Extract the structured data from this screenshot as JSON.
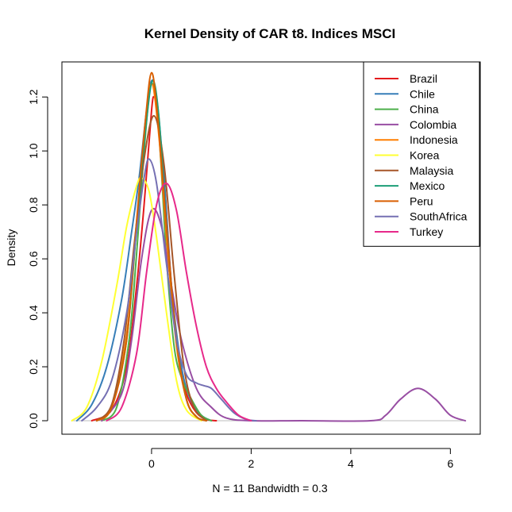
{
  "chart_data": {
    "type": "line",
    "title": "Kernel Density of CAR t8. Indices MSCI",
    "xlabel": "N = 11   Bandwidth = 0.3",
    "ylabel": "Density",
    "xlim": [
      -1.8,
      6.6
    ],
    "ylim": [
      -0.05,
      1.33
    ],
    "x_ticks": [
      0,
      2,
      4,
      6
    ],
    "x_tick_labels": [
      "0",
      "2",
      "4",
      "6"
    ],
    "y_ticks": [
      0.0,
      0.2,
      0.4,
      0.6,
      0.8,
      1.0,
      1.2
    ],
    "y_tick_labels": [
      "0.0",
      "0.2",
      "0.4",
      "0.6",
      "0.8",
      "1.0",
      "1.2"
    ],
    "baseline_color": "#bebebe",
    "legend_position": "top-right",
    "series": [
      {
        "name": "Brazil",
        "color": "#e41a1c",
        "peak_x": 0.05,
        "peak_density": 1.2,
        "x": [
          -1.2,
          -0.8,
          -0.5,
          -0.3,
          -0.15,
          0.0,
          0.05,
          0.1,
          0.25,
          0.4,
          0.55,
          0.7,
          0.9,
          1.1,
          1.3
        ],
        "density": [
          0.0,
          0.04,
          0.2,
          0.5,
          0.8,
          1.15,
          1.2,
          1.17,
          0.9,
          0.5,
          0.22,
          0.1,
          0.03,
          0.005,
          0.0
        ]
      },
      {
        "name": "Chile",
        "color": "#377eb8",
        "peak_x": 0.0,
        "peak_density": 1.26,
        "x": [
          -1.5,
          -1.2,
          -0.9,
          -0.6,
          -0.4,
          -0.25,
          -0.1,
          0.0,
          0.1,
          0.25,
          0.4,
          0.6,
          0.8,
          1.0,
          1.2
        ],
        "density": [
          0.0,
          0.06,
          0.2,
          0.45,
          0.7,
          0.9,
          1.15,
          1.26,
          1.2,
          0.9,
          0.5,
          0.2,
          0.07,
          0.02,
          0.0
        ]
      },
      {
        "name": "China",
        "color": "#4daf4a",
        "peak_x": -0.02,
        "peak_density": 1.24,
        "x": [
          -1.0,
          -0.7,
          -0.45,
          -0.3,
          -0.15,
          -0.02,
          0.1,
          0.2,
          0.3,
          0.45,
          0.6,
          0.8,
          1.0,
          1.2
        ],
        "density": [
          0.0,
          0.05,
          0.3,
          0.62,
          1.0,
          1.24,
          1.18,
          0.92,
          0.6,
          0.28,
          0.16,
          0.08,
          0.02,
          0.0
        ]
      },
      {
        "name": "Colombia",
        "color": "#984ea3",
        "peak_x": 5.35,
        "peak_density": 0.12,
        "x": [
          -1.0,
          -0.6,
          -0.4,
          -0.2,
          0.0,
          0.2,
          0.4,
          0.6,
          0.9,
          1.2,
          1.5,
          2.0,
          3.0,
          4.4,
          4.7,
          5.0,
          5.35,
          5.7,
          6.0,
          6.3
        ],
        "density": [
          0.0,
          0.1,
          0.3,
          0.6,
          0.78,
          0.72,
          0.5,
          0.3,
          0.12,
          0.05,
          0.01,
          0.0,
          0.0,
          0.0,
          0.02,
          0.08,
          0.12,
          0.08,
          0.02,
          0.0
        ]
      },
      {
        "name": "Indonesia",
        "color": "#ff7f00",
        "peak_x": 0.0,
        "peak_density": 1.25,
        "x": [
          -1.1,
          -0.8,
          -0.5,
          -0.3,
          -0.15,
          0.0,
          0.15,
          0.3,
          0.5,
          0.7,
          0.9,
          1.1
        ],
        "density": [
          0.0,
          0.05,
          0.32,
          0.72,
          1.05,
          1.25,
          1.05,
          0.68,
          0.28,
          0.08,
          0.015,
          0.0
        ]
      },
      {
        "name": "Korea",
        "color": "#ffff33",
        "peak_x": -0.2,
        "peak_density": 0.9,
        "x": [
          -1.6,
          -1.3,
          -1.0,
          -0.7,
          -0.5,
          -0.3,
          -0.2,
          -0.05,
          0.1,
          0.3,
          0.5,
          0.7,
          1.0
        ],
        "density": [
          0.0,
          0.05,
          0.22,
          0.5,
          0.72,
          0.87,
          0.9,
          0.85,
          0.68,
          0.4,
          0.15,
          0.04,
          0.0
        ]
      },
      {
        "name": "Malaysia",
        "color": "#a65628",
        "peak_x": 0.05,
        "peak_density": 1.13,
        "x": [
          -1.1,
          -0.8,
          -0.55,
          -0.35,
          -0.15,
          0.05,
          0.25,
          0.45,
          0.65,
          0.85,
          1.1
        ],
        "density": [
          0.0,
          0.06,
          0.3,
          0.65,
          0.97,
          1.13,
          0.95,
          0.55,
          0.2,
          0.05,
          0.0
        ]
      },
      {
        "name": "Mexico",
        "color": "#1b9e77",
        "peak_x": 0.02,
        "peak_density": 1.26,
        "x": [
          -1.1,
          -0.8,
          -0.5,
          -0.3,
          -0.12,
          0.02,
          0.15,
          0.3,
          0.5,
          0.7,
          0.9,
          1.1
        ],
        "density": [
          0.0,
          0.05,
          0.3,
          0.72,
          1.08,
          1.26,
          1.12,
          0.72,
          0.3,
          0.08,
          0.015,
          0.0
        ]
      },
      {
        "name": "Peru",
        "color": "#d95f02",
        "peak_x": 0.0,
        "peak_density": 1.29,
        "x": [
          -1.1,
          -0.8,
          -0.5,
          -0.3,
          -0.12,
          0.0,
          0.12,
          0.3,
          0.5,
          0.7,
          0.9,
          1.1
        ],
        "density": [
          0.0,
          0.05,
          0.3,
          0.74,
          1.12,
          1.29,
          1.13,
          0.72,
          0.3,
          0.08,
          0.015,
          0.0
        ]
      },
      {
        "name": "SouthAfrica",
        "color": "#7570b3",
        "peak_x": -0.05,
        "peak_density": 0.97,
        "x": [
          -1.4,
          -1.1,
          -0.8,
          -0.5,
          -0.3,
          -0.15,
          -0.05,
          0.1,
          0.3,
          0.5,
          0.7,
          0.9,
          1.05,
          1.2,
          1.4,
          1.65,
          1.9,
          2.1
        ],
        "density": [
          0.0,
          0.05,
          0.15,
          0.4,
          0.7,
          0.9,
          0.97,
          0.88,
          0.58,
          0.3,
          0.17,
          0.14,
          0.13,
          0.12,
          0.08,
          0.03,
          0.005,
          0.0
        ]
      },
      {
        "name": "Turkey",
        "color": "#e7298a",
        "peak_x": 0.3,
        "peak_density": 0.88,
        "x": [
          -0.9,
          -0.6,
          -0.3,
          -0.1,
          0.1,
          0.3,
          0.5,
          0.7,
          0.9,
          1.1,
          1.3,
          1.5,
          1.75,
          2.0
        ],
        "density": [
          0.0,
          0.05,
          0.25,
          0.55,
          0.8,
          0.88,
          0.78,
          0.55,
          0.35,
          0.2,
          0.12,
          0.07,
          0.02,
          0.0
        ]
      }
    ]
  }
}
